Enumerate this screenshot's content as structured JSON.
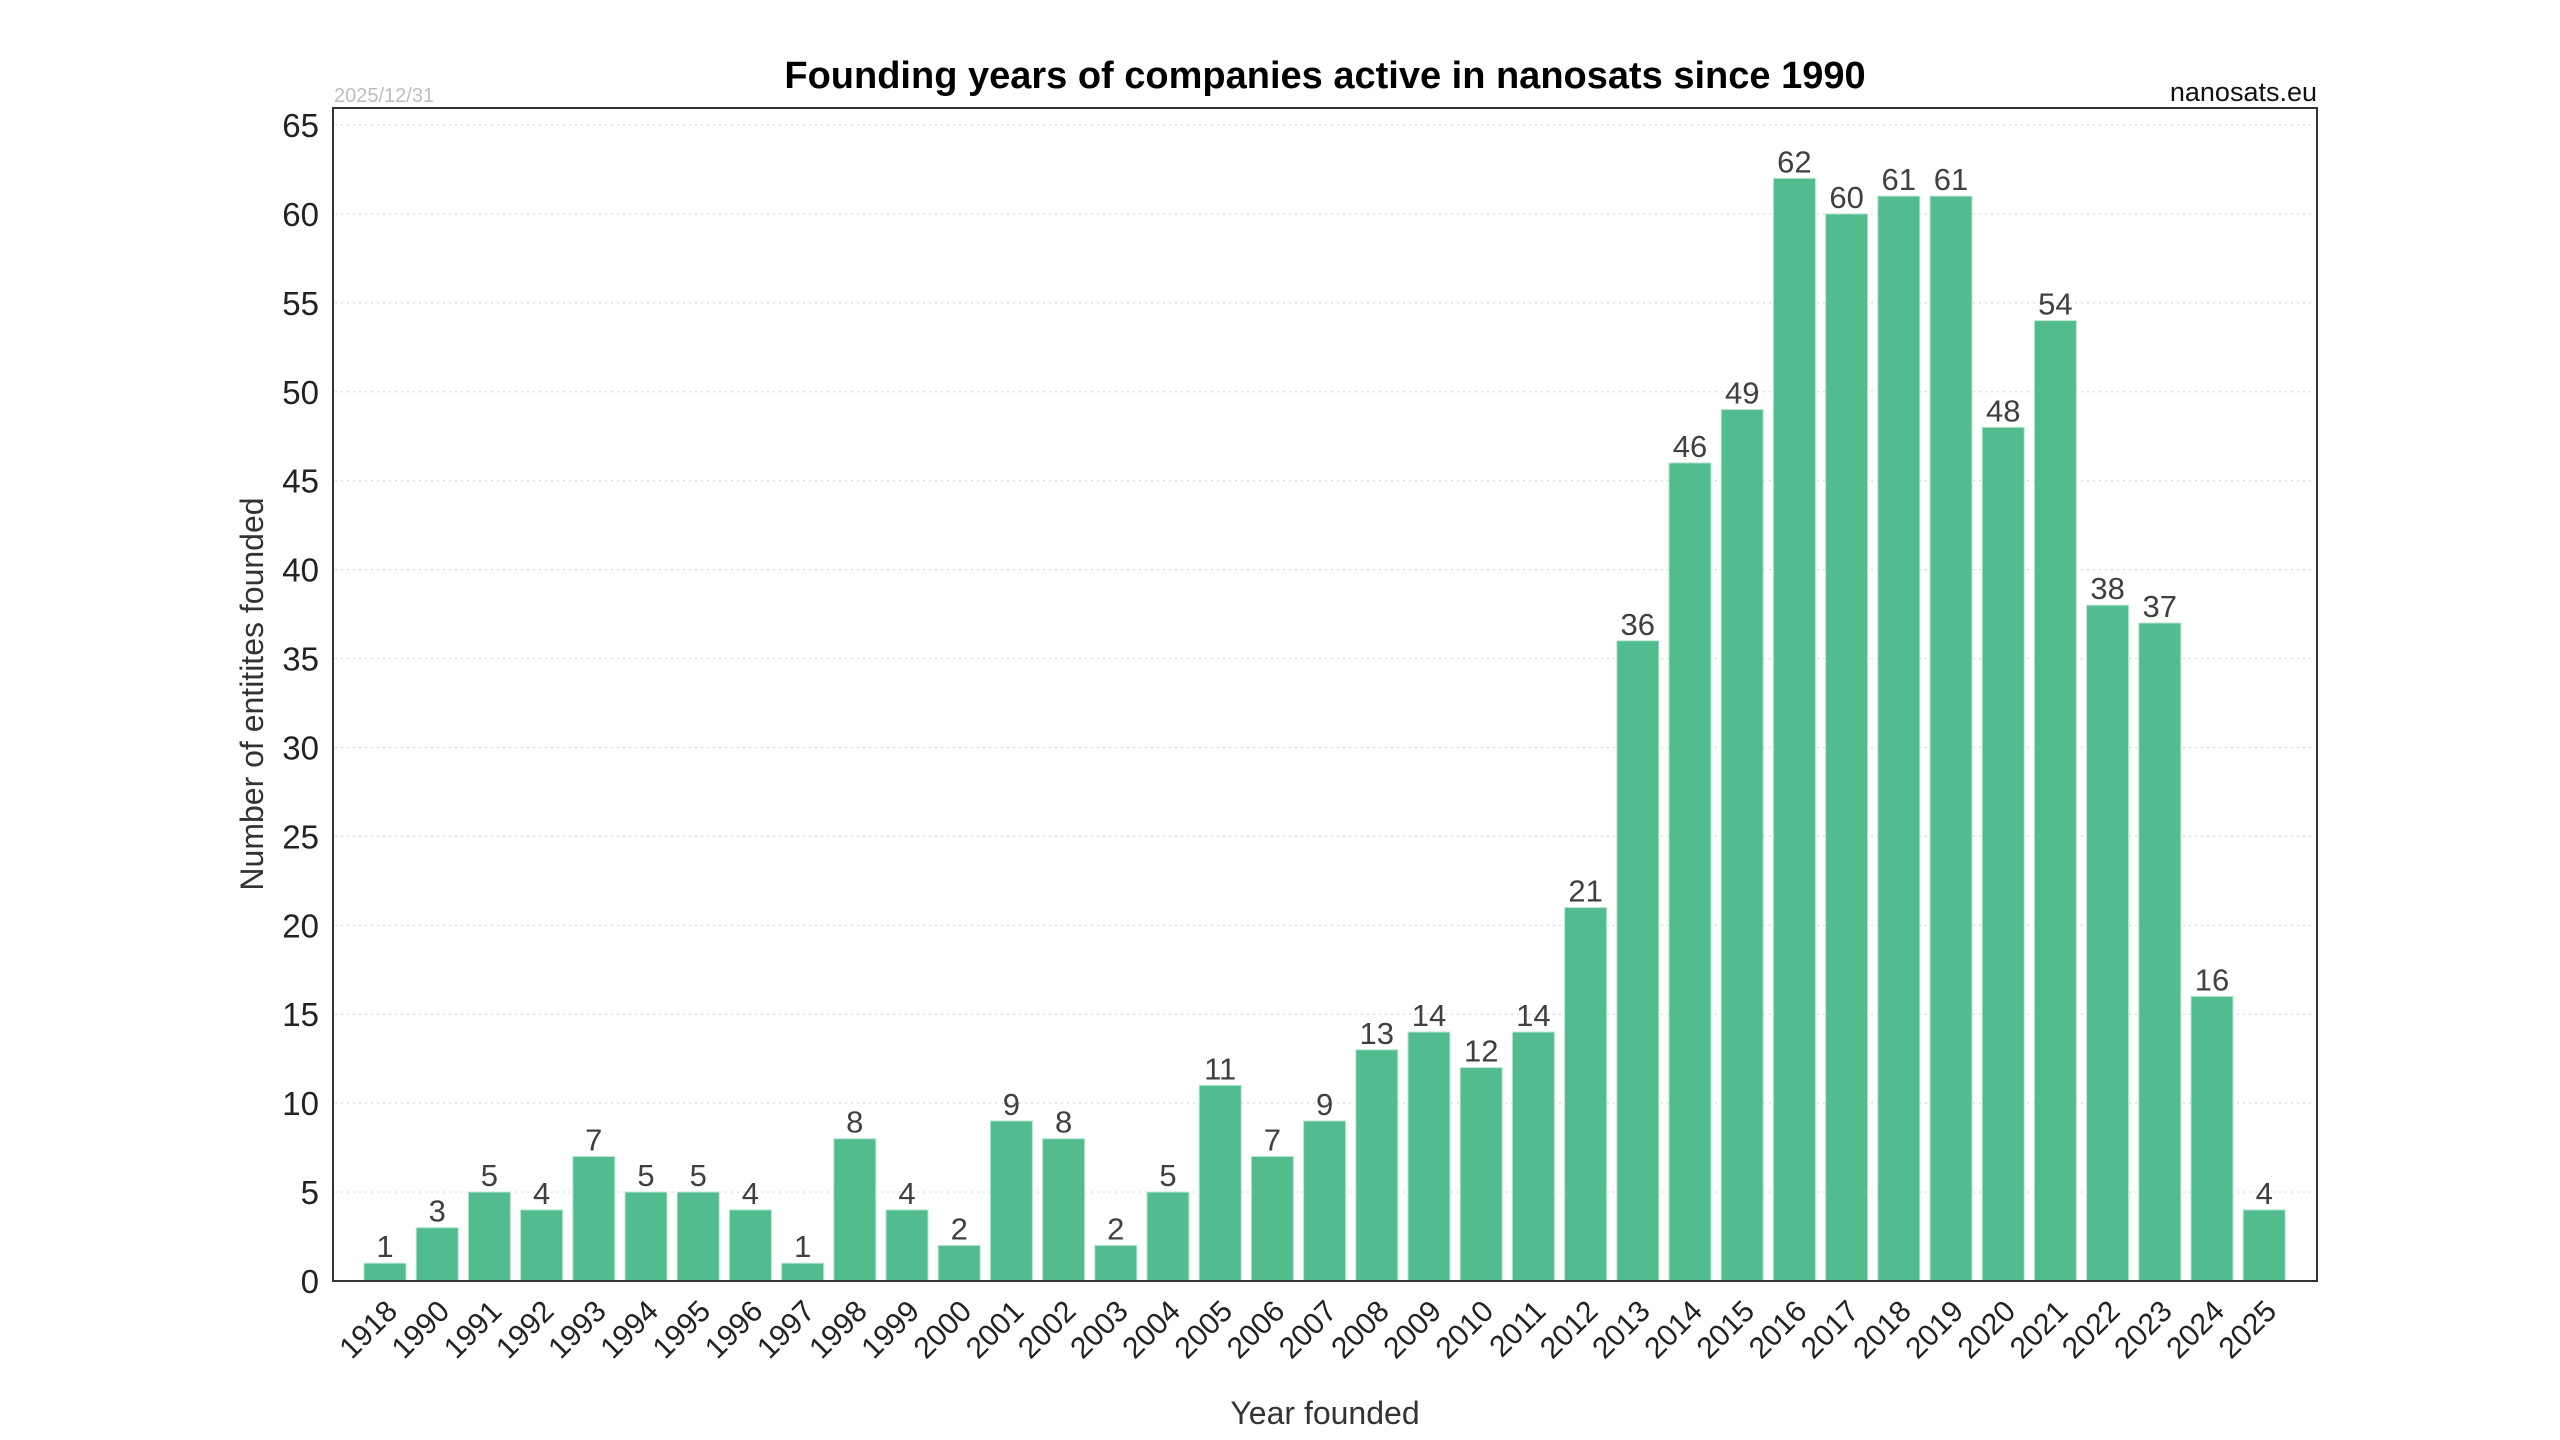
{
  "chart_data": {
    "type": "bar",
    "title": "Founding years of companies active in nanosats since 1990",
    "date_stamp": "2025/12/31",
    "source": "nanosats.eu",
    "xlabel": "Year founded",
    "ylabel": "Number of entitites founded",
    "ylim": [
      0,
      65
    ],
    "yticks": [
      0,
      5,
      10,
      15,
      20,
      25,
      30,
      35,
      40,
      45,
      50,
      55,
      60,
      65
    ],
    "grid": true,
    "legend": "none",
    "bar_color": "#52bc8e",
    "categories": [
      "1918",
      "1990",
      "1991",
      "1992",
      "1993",
      "1994",
      "1995",
      "1996",
      "1997",
      "1998",
      "1999",
      "2000",
      "2001",
      "2002",
      "2003",
      "2004",
      "2005",
      "2006",
      "2007",
      "2008",
      "2009",
      "2010",
      "2011",
      "2012",
      "2013",
      "2014",
      "2015",
      "2016",
      "2017",
      "2018",
      "2019",
      "2020",
      "2021",
      "2022",
      "2023",
      "2024",
      "2025"
    ],
    "values": [
      1,
      3,
      5,
      4,
      7,
      5,
      5,
      4,
      1,
      8,
      4,
      2,
      9,
      8,
      2,
      5,
      11,
      7,
      9,
      13,
      14,
      12,
      14,
      21,
      36,
      46,
      49,
      62,
      60,
      61,
      61,
      48,
      54,
      38,
      37,
      16,
      4
    ]
  }
}
